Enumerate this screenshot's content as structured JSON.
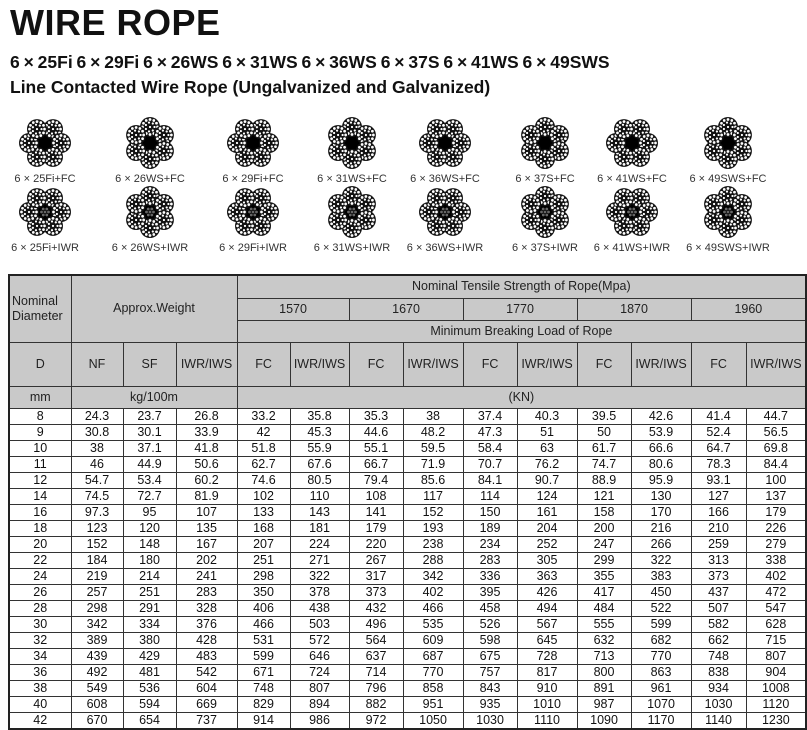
{
  "title": "WIRE ROPE",
  "subtitle1": "6 × 25Fi  6 × 29Fi 6 × 26WS 6 × 31WS 6 × 36WS 6 × 37S 6 × 41WS 6 × 49SWS",
  "subtitle2": "Line Contacted Wire Rope (Ungalvanized and Galvanized)",
  "ropes_fc": [
    "6 × 25Fi+FC",
    "6 × 26WS+FC",
    "6 × 29Fi+FC",
    "6 × 31WS+FC",
    "6 × 36WS+FC",
    "6 × 37S+FC",
    "6 × 41WS+FC",
    "6 × 49SWS+FC"
  ],
  "ropes_iwr": [
    "6 × 25Fi+IWR",
    "6 × 26WS+IWR",
    "6 × 29Fi+IWR",
    "6 × 31WS+IWR",
    "6 × 36WS+IWR",
    "6 × 37S+IWR",
    "6 × 41WS+IWR",
    "6 × 49SWS+IWR"
  ],
  "table": {
    "nominal_diameter": "Nominal Diameter",
    "approx_weight": "Approx.Weight",
    "tensile_title": "Nominal Tensile Strength of Rope(Mpa)",
    "grades": [
      "1570",
      "1670",
      "1770",
      "1870",
      "1960"
    ],
    "mbl_title": "Minimum Breaking Load of Rope",
    "col_D": "D",
    "weight_cols": [
      "NF",
      "SF",
      "IWR/IWS"
    ],
    "load_cols": [
      "FC",
      "IWR/IWS"
    ],
    "unit_mm": "mm",
    "unit_weight": "kg/100m",
    "unit_load": "(KN)",
    "rows": [
      [
        "8",
        "24.3",
        "23.7",
        "26.8",
        "33.2",
        "35.8",
        "35.3",
        "38",
        "37.4",
        "40.3",
        "39.5",
        "42.6",
        "41.4",
        "44.7"
      ],
      [
        "9",
        "30.8",
        "30.1",
        "33.9",
        "42",
        "45.3",
        "44.6",
        "48.2",
        "47.3",
        "51",
        "50",
        "53.9",
        "52.4",
        "56.5"
      ],
      [
        "10",
        "38",
        "37.1",
        "41.8",
        "51.8",
        "55.9",
        "55.1",
        "59.5",
        "58.4",
        "63",
        "61.7",
        "66.6",
        "64.7",
        "69.8"
      ],
      [
        "11",
        "46",
        "44.9",
        "50.6",
        "62.7",
        "67.6",
        "66.7",
        "71.9",
        "70.7",
        "76.2",
        "74.7",
        "80.6",
        "78.3",
        "84.4"
      ],
      [
        "12",
        "54.7",
        "53.4",
        "60.2",
        "74.6",
        "80.5",
        "79.4",
        "85.6",
        "84.1",
        "90.7",
        "88.9",
        "95.9",
        "93.1",
        "100"
      ],
      [
        "14",
        "74.5",
        "72.7",
        "81.9",
        "102",
        "110",
        "108",
        "117",
        "114",
        "124",
        "121",
        "130",
        "127",
        "137"
      ],
      [
        "16",
        "97.3",
        "95",
        "107",
        "133",
        "143",
        "141",
        "152",
        "150",
        "161",
        "158",
        "170",
        "166",
        "179"
      ],
      [
        "18",
        "123",
        "120",
        "135",
        "168",
        "181",
        "179",
        "193",
        "189",
        "204",
        "200",
        "216",
        "210",
        "226"
      ],
      [
        "20",
        "152",
        "148",
        "167",
        "207",
        "224",
        "220",
        "238",
        "234",
        "252",
        "247",
        "266",
        "259",
        "279"
      ],
      [
        "22",
        "184",
        "180",
        "202",
        "251",
        "271",
        "267",
        "288",
        "283",
        "305",
        "299",
        "322",
        "313",
        "338"
      ],
      [
        "24",
        "219",
        "214",
        "241",
        "298",
        "322",
        "317",
        "342",
        "336",
        "363",
        "355",
        "383",
        "373",
        "402"
      ],
      [
        "26",
        "257",
        "251",
        "283",
        "350",
        "378",
        "373",
        "402",
        "395",
        "426",
        "417",
        "450",
        "437",
        "472"
      ],
      [
        "28",
        "298",
        "291",
        "328",
        "406",
        "438",
        "432",
        "466",
        "458",
        "494",
        "484",
        "522",
        "507",
        "547"
      ],
      [
        "30",
        "342",
        "334",
        "376",
        "466",
        "503",
        "496",
        "535",
        "526",
        "567",
        "555",
        "599",
        "582",
        "628"
      ],
      [
        "32",
        "389",
        "380",
        "428",
        "531",
        "572",
        "564",
        "609",
        "598",
        "645",
        "632",
        "682",
        "662",
        "715"
      ],
      [
        "34",
        "439",
        "429",
        "483",
        "599",
        "646",
        "637",
        "687",
        "675",
        "728",
        "713",
        "770",
        "748",
        "807"
      ],
      [
        "36",
        "492",
        "481",
        "542",
        "671",
        "724",
        "714",
        "770",
        "757",
        "817",
        "800",
        "863",
        "838",
        "904"
      ],
      [
        "38",
        "549",
        "536",
        "604",
        "748",
        "807",
        "796",
        "858",
        "843",
        "910",
        "891",
        "961",
        "934",
        "1008"
      ],
      [
        "40",
        "608",
        "594",
        "669",
        "829",
        "894",
        "882",
        "951",
        "935",
        "1010",
        "987",
        "1070",
        "1030",
        "1120"
      ],
      [
        "42",
        "670",
        "654",
        "737",
        "914",
        "986",
        "972",
        "1050",
        "1030",
        "1110",
        "1090",
        "1170",
        "1140",
        "1230"
      ]
    ]
  }
}
